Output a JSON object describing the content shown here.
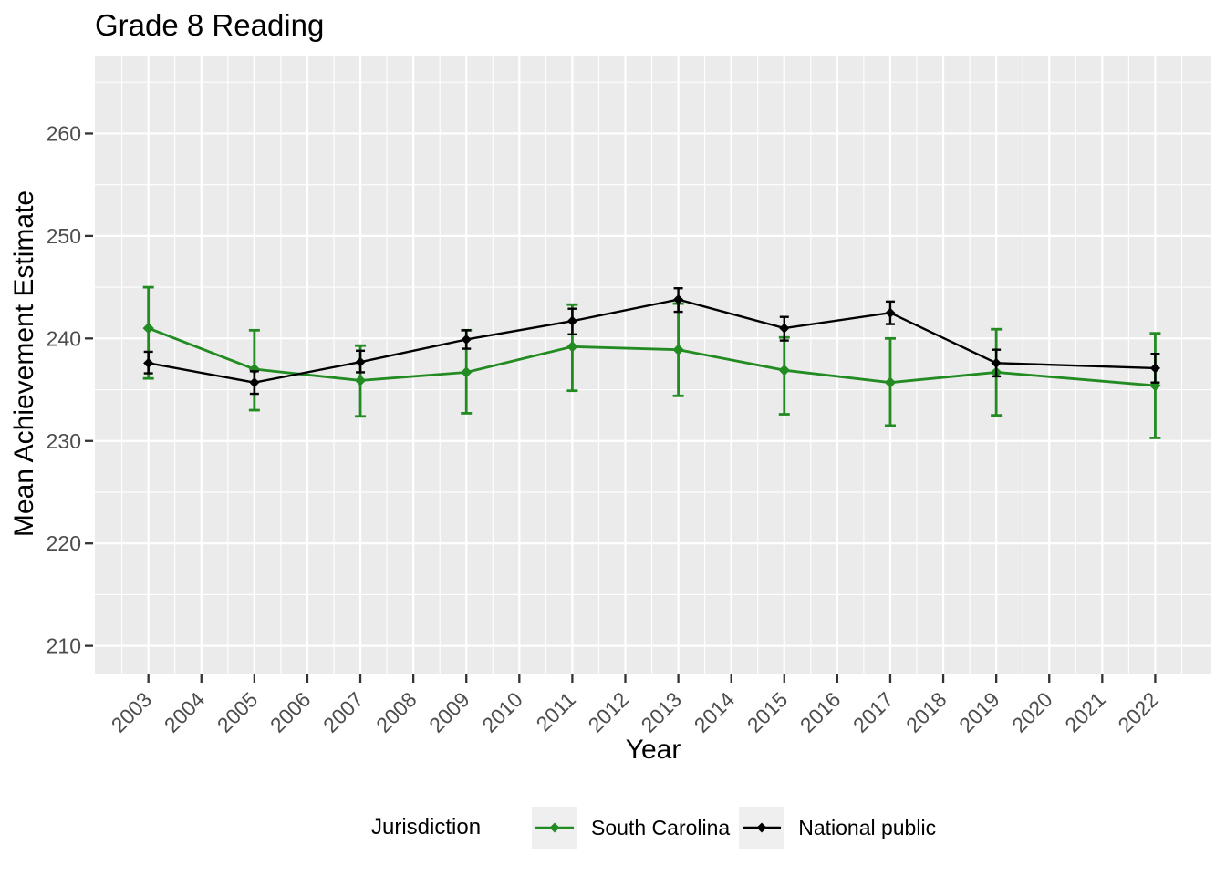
{
  "chart_data": {
    "type": "line",
    "title": "Grade 8 Reading",
    "xlabel": "Year",
    "ylabel": "Mean Achievement Estimate",
    "legend_title": "Jurisdiction",
    "legend_position": "bottom",
    "grid": "on",
    "panel_bg": "#EBEBEB",
    "grid_color": "#FFFFFF",
    "axis_text_color": "#4D4D4D",
    "tick_color": "#333333",
    "x_ticks": [
      2003,
      2004,
      2005,
      2006,
      2007,
      2008,
      2009,
      2010,
      2011,
      2012,
      2013,
      2014,
      2015,
      2016,
      2017,
      2018,
      2019,
      2020,
      2021,
      2022
    ],
    "y_ticks": [
      210,
      220,
      230,
      240,
      250,
      260
    ],
    "y_minor_ticks": [
      215,
      225,
      235,
      245,
      255,
      265
    ],
    "xlim": [
      2001.99,
      2023.06
    ],
    "ylim": [
      207.3,
      267.6
    ],
    "x": [
      2003,
      2005,
      2007,
      2009,
      2011,
      2013,
      2015,
      2017,
      2019,
      2022
    ],
    "series": [
      {
        "name": "South Carolina",
        "color": "#228B22",
        "values": [
          241.0,
          237.0,
          235.9,
          236.7,
          239.2,
          238.9,
          236.9,
          235.7,
          236.7,
          235.4
        ],
        "lower": [
          236.1,
          233.0,
          232.4,
          232.7,
          234.9,
          234.4,
          232.6,
          231.5,
          232.5,
          230.3
        ],
        "upper": [
          245.0,
          240.8,
          239.3,
          240.8,
          243.3,
          243.4,
          240.1,
          240.0,
          240.9,
          240.5
        ]
      },
      {
        "name": "National public",
        "color": "#000000",
        "values": [
          237.6,
          235.7,
          237.7,
          239.9,
          241.7,
          243.8,
          241.0,
          242.5,
          237.6,
          237.1
        ],
        "lower": [
          236.6,
          234.6,
          236.7,
          239.0,
          240.4,
          242.6,
          239.8,
          241.4,
          236.3,
          235.7
        ],
        "upper": [
          238.7,
          236.8,
          238.8,
          240.8,
          242.9,
          244.9,
          242.1,
          243.6,
          238.9,
          238.5
        ]
      }
    ]
  }
}
